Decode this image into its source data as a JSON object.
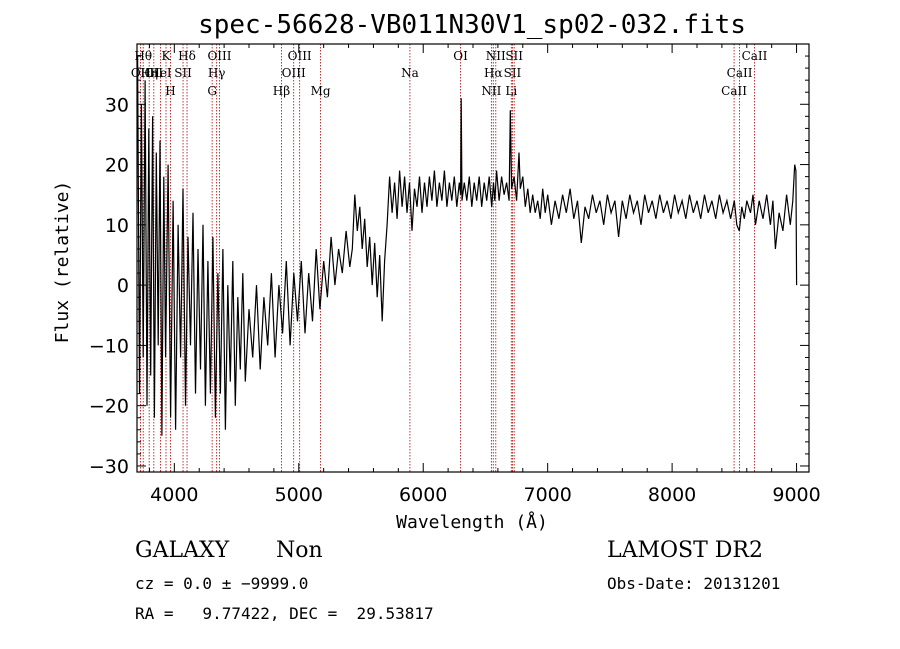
{
  "chart_data": {
    "type": "line",
    "title": "spec-56628-VB011N30V1_sp02-032.fits",
    "xlabel": "Wavelength (Å)",
    "ylabel": "Flux (relative)",
    "xlim": [
      3700,
      9100
    ],
    "ylim": [
      -31,
      40
    ],
    "xticks": [
      4000,
      5000,
      6000,
      7000,
      8000,
      9000
    ],
    "yticks": [
      -30,
      -20,
      -10,
      0,
      10,
      20,
      30
    ],
    "xtick_labels": [
      "4000",
      "5000",
      "6000",
      "7000",
      "8000",
      "9000"
    ],
    "ytick_labels": [
      "−30",
      "−20",
      "−10",
      "0",
      "10",
      "20",
      "30"
    ],
    "grid": false,
    "line_color": "#000000",
    "marker_color": "#b22222",
    "series": [
      {
        "values": [
          [
            3705,
            38
          ],
          [
            3720,
            -18
          ],
          [
            3735,
            30
          ],
          [
            3750,
            -12
          ],
          [
            3765,
            34
          ],
          [
            3780,
            -20
          ],
          [
            3795,
            26
          ],
          [
            3810,
            -15
          ],
          [
            3825,
            28
          ],
          [
            3840,
            -22
          ],
          [
            3855,
            22
          ],
          [
            3870,
            -10
          ],
          [
            3885,
            24
          ],
          [
            3900,
            -25
          ],
          [
            3915,
            18
          ],
          [
            3930,
            -12
          ],
          [
            3950,
            20
          ],
          [
            3970,
            -22
          ],
          [
            3990,
            14
          ],
          [
            4010,
            -24
          ],
          [
            4030,
            10
          ],
          [
            4050,
            -12
          ],
          [
            4070,
            16
          ],
          [
            4090,
            -20
          ],
          [
            4110,
            8
          ],
          [
            4130,
            -10
          ],
          [
            4150,
            12
          ],
          [
            4170,
            -18
          ],
          [
            4190,
            6
          ],
          [
            4210,
            -14
          ],
          [
            4230,
            10
          ],
          [
            4250,
            -20
          ],
          [
            4270,
            4
          ],
          [
            4290,
            -18
          ],
          [
            4310,
            8
          ],
          [
            4330,
            -22
          ],
          [
            4350,
            2
          ],
          [
            4370,
            -18
          ],
          [
            4390,
            6
          ],
          [
            4410,
            -24
          ],
          [
            4430,
            0
          ],
          [
            4450,
            -16
          ],
          [
            4470,
            4
          ],
          [
            4490,
            -20
          ],
          [
            4510,
            -2
          ],
          [
            4530,
            -14
          ],
          [
            4550,
            2
          ],
          [
            4570,
            -16
          ],
          [
            4600,
            -4
          ],
          [
            4630,
            -12
          ],
          [
            4660,
            0
          ],
          [
            4690,
            -14
          ],
          [
            4720,
            -2
          ],
          [
            4750,
            -10
          ],
          [
            4780,
            2
          ],
          [
            4810,
            -12
          ],
          [
            4840,
            0
          ],
          [
            4870,
            -8
          ],
          [
            4900,
            4
          ],
          [
            4930,
            -10
          ],
          [
            4960,
            2
          ],
          [
            4990,
            -6
          ],
          [
            5020,
            4
          ],
          [
            5050,
            -8
          ],
          [
            5080,
            2
          ],
          [
            5110,
            -6
          ],
          [
            5140,
            6
          ],
          [
            5170,
            -4
          ],
          [
            5200,
            4
          ],
          [
            5230,
            -2
          ],
          [
            5260,
            8
          ],
          [
            5290,
            0
          ],
          [
            5320,
            6
          ],
          [
            5350,
            2
          ],
          [
            5380,
            9
          ],
          [
            5410,
            3
          ],
          [
            5430,
            6
          ],
          [
            5450,
            15
          ],
          [
            5470,
            9
          ],
          [
            5490,
            13
          ],
          [
            5510,
            6
          ],
          [
            5530,
            11
          ],
          [
            5550,
            3
          ],
          [
            5570,
            8
          ],
          [
            5590,
            0
          ],
          [
            5610,
            7
          ],
          [
            5630,
            -2
          ],
          [
            5650,
            5
          ],
          [
            5670,
            -6
          ],
          [
            5690,
            4
          ],
          [
            5710,
            10
          ],
          [
            5730,
            18
          ],
          [
            5750,
            12
          ],
          [
            5770,
            17
          ],
          [
            5790,
            11
          ],
          [
            5810,
            19
          ],
          [
            5830,
            13
          ],
          [
            5850,
            18
          ],
          [
            5870,
            12
          ],
          [
            5890,
            17
          ],
          [
            5910,
            9
          ],
          [
            5930,
            16
          ],
          [
            5950,
            13
          ],
          [
            5970,
            18
          ],
          [
            5990,
            12
          ],
          [
            6010,
            17
          ],
          [
            6030,
            13
          ],
          [
            6050,
            18
          ],
          [
            6070,
            14
          ],
          [
            6090,
            19
          ],
          [
            6110,
            13
          ],
          [
            6130,
            17
          ],
          [
            6150,
            14
          ],
          [
            6170,
            19
          ],
          [
            6190,
            13
          ],
          [
            6210,
            17
          ],
          [
            6230,
            14
          ],
          [
            6250,
            18
          ],
          [
            6270,
            13
          ],
          [
            6290,
            17
          ],
          [
            6300,
            15
          ],
          [
            6305,
            31
          ],
          [
            6312,
            14
          ],
          [
            6330,
            17
          ],
          [
            6350,
            14
          ],
          [
            6370,
            18
          ],
          [
            6390,
            13
          ],
          [
            6410,
            17
          ],
          [
            6430,
            14
          ],
          [
            6450,
            18
          ],
          [
            6470,
            13
          ],
          [
            6490,
            17
          ],
          [
            6510,
            14
          ],
          [
            6530,
            18
          ],
          [
            6550,
            13
          ],
          [
            6565,
            17
          ],
          [
            6575,
            14
          ],
          [
            6590,
            19
          ],
          [
            6610,
            14
          ],
          [
            6630,
            18
          ],
          [
            6650,
            15
          ],
          [
            6670,
            17
          ],
          [
            6690,
            14
          ],
          [
            6700,
            29
          ],
          [
            6710,
            16
          ],
          [
            6730,
            18
          ],
          [
            6750,
            14
          ],
          [
            6770,
            22
          ],
          [
            6780,
            16
          ],
          [
            6800,
            18
          ],
          [
            6820,
            13
          ],
          [
            6840,
            16
          ],
          [
            6860,
            12
          ],
          [
            6880,
            15
          ],
          [
            6900,
            12
          ],
          [
            6920,
            14
          ],
          [
            6940,
            11
          ],
          [
            6960,
            16
          ],
          [
            6980,
            12
          ],
          [
            7000,
            15
          ],
          [
            7030,
            10
          ],
          [
            7060,
            14
          ],
          [
            7090,
            11
          ],
          [
            7120,
            15
          ],
          [
            7150,
            12
          ],
          [
            7180,
            16
          ],
          [
            7210,
            11
          ],
          [
            7240,
            14
          ],
          [
            7270,
            7
          ],
          [
            7300,
            13
          ],
          [
            7330,
            11
          ],
          [
            7360,
            15
          ],
          [
            7390,
            12
          ],
          [
            7420,
            14
          ],
          [
            7450,
            10
          ],
          [
            7480,
            15
          ],
          [
            7510,
            12
          ],
          [
            7540,
            14
          ],
          [
            7570,
            8
          ],
          [
            7600,
            14
          ],
          [
            7630,
            11
          ],
          [
            7660,
            15
          ],
          [
            7690,
            12
          ],
          [
            7720,
            14
          ],
          [
            7750,
            10
          ],
          [
            7780,
            15
          ],
          [
            7810,
            12
          ],
          [
            7840,
            14
          ],
          [
            7870,
            11
          ],
          [
            7900,
            15
          ],
          [
            7930,
            12
          ],
          [
            7960,
            14
          ],
          [
            7990,
            11
          ],
          [
            8020,
            15
          ],
          [
            8050,
            12
          ],
          [
            8080,
            14
          ],
          [
            8110,
            11
          ],
          [
            8140,
            15
          ],
          [
            8170,
            12
          ],
          [
            8200,
            14
          ],
          [
            8230,
            11
          ],
          [
            8260,
            15
          ],
          [
            8290,
            12
          ],
          [
            8320,
            14
          ],
          [
            8350,
            11
          ],
          [
            8380,
            15
          ],
          [
            8410,
            12
          ],
          [
            8440,
            14
          ],
          [
            8470,
            11
          ],
          [
            8500,
            14
          ],
          [
            8520,
            10
          ],
          [
            8540,
            9
          ],
          [
            8560,
            13
          ],
          [
            8580,
            11
          ],
          [
            8600,
            14
          ],
          [
            8630,
            12
          ],
          [
            8650,
            15
          ],
          [
            8670,
            10
          ],
          [
            8700,
            14
          ],
          [
            8730,
            11
          ],
          [
            8760,
            15
          ],
          [
            8790,
            10
          ],
          [
            8810,
            14
          ],
          [
            8830,
            6
          ],
          [
            8860,
            12
          ],
          [
            8890,
            9
          ],
          [
            8920,
            15
          ],
          [
            8950,
            10
          ],
          [
            8970,
            14
          ],
          [
            8985,
            20
          ],
          [
            8995,
            19
          ],
          [
            9000,
            0
          ]
        ]
      }
    ],
    "line_markers": [
      {
        "wl": 3728,
        "labels": [
          {
            "text": "OII",
            "row": 4
          }
        ]
      },
      {
        "wl": 3750,
        "labels": [
          {
            "text": "Hθ",
            "row": 1
          }
        ]
      },
      {
        "wl": 3798,
        "labels": [
          {
            "text": "Hη",
            "row": 4
          }
        ]
      },
      {
        "wl": 3835,
        "labels": [
          {
            "text": "CII",
            "row": 2
          }
        ]
      },
      {
        "wl": 3889,
        "labels": [
          {
            "text": "HeI",
            "row": 2
          }
        ]
      },
      {
        "wl": 3933,
        "labels": [
          {
            "text": "K",
            "row": 1
          }
        ]
      },
      {
        "wl": 3969,
        "labels": [
          {
            "text": "H",
            "row": 3
          }
        ]
      },
      {
        "wl": 4070,
        "labels": [
          {
            "text": "SII",
            "row": 2
          }
        ]
      },
      {
        "wl": 4102,
        "labels": [
          {
            "text": "Hδ",
            "row": 1
          }
        ]
      },
      {
        "wl": 4304,
        "labels": [
          {
            "text": "G",
            "row": 3
          }
        ]
      },
      {
        "wl": 4340,
        "labels": [
          {
            "text": "Hγ",
            "row": 2
          }
        ]
      },
      {
        "wl": 4363,
        "labels": [
          {
            "text": "OIII",
            "row": 1
          }
        ]
      },
      {
        "wl": 4861,
        "labels": [
          {
            "text": "Hβ",
            "row": 3
          }
        ]
      },
      {
        "wl": 4959,
        "labels": [
          {
            "text": "OIII",
            "row": 2
          }
        ]
      },
      {
        "wl": 5007,
        "labels": [
          {
            "text": "OIII",
            "row": 1
          }
        ]
      },
      {
        "wl": 5175,
        "labels": [
          {
            "text": "Mg",
            "row": 3
          }
        ]
      },
      {
        "wl": 5893,
        "labels": [
          {
            "text": "Na",
            "row": 2
          }
        ]
      },
      {
        "wl": 6300,
        "labels": [
          {
            "text": "OI",
            "row": 1
          }
        ]
      },
      {
        "wl": 6548,
        "labels": [
          {
            "text": "NII",
            "row": 3
          }
        ]
      },
      {
        "wl": 6563,
        "labels": [
          {
            "text": "Hα",
            "row": 2
          }
        ]
      },
      {
        "wl": 6583,
        "labels": [
          {
            "text": "NII",
            "row": 1
          }
        ]
      },
      {
        "wl": 6708,
        "labels": [
          {
            "text": "Li",
            "row": 3
          }
        ]
      },
      {
        "wl": 6717,
        "labels": [
          {
            "text": "SII",
            "row": 2
          }
        ]
      },
      {
        "wl": 6731,
        "labels": [
          {
            "text": "SII",
            "row": 1
          }
        ]
      },
      {
        "wl": 8498,
        "labels": [
          {
            "text": "CaII",
            "row": 3
          }
        ]
      },
      {
        "wl": 8542,
        "labels": [
          {
            "text": "CaII",
            "row": 2
          }
        ]
      },
      {
        "wl": 8662,
        "labels": [
          {
            "text": "CaII",
            "row": 1
          }
        ]
      }
    ]
  },
  "info": {
    "object_class": "GALAXY",
    "subclass": "Non",
    "survey": "LAMOST DR2",
    "cz_line": "cz = 0.0 ± −9999.0",
    "obs_date_line": "Obs-Date: 20131201",
    "coords_line": "RA =   9.77422, DEC =  29.53817"
  }
}
